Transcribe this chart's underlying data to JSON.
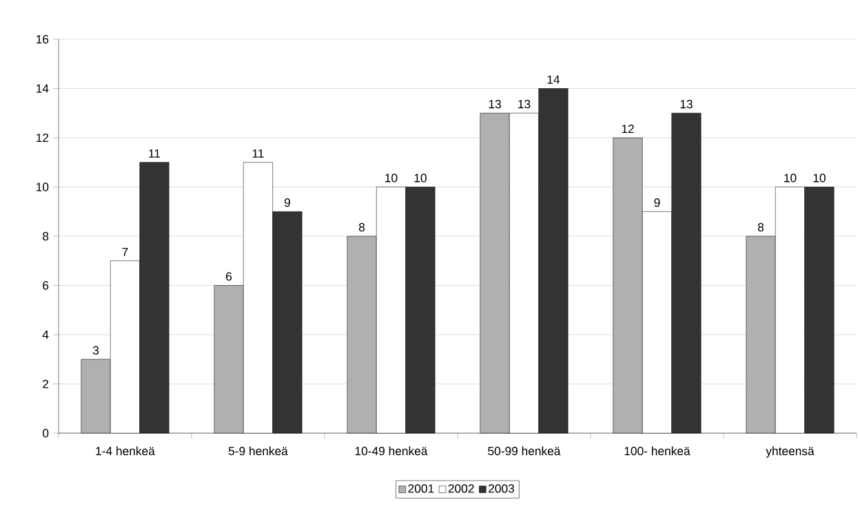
{
  "chart_data": {
    "type": "bar",
    "categories": [
      "1-4 henkeä",
      "5-9 henkeä",
      "10-49 henkeä",
      "50-99 henkeä",
      "100- henkeä",
      "yhteensä"
    ],
    "series": [
      {
        "name": "2001",
        "color": "#b0b0b0",
        "values": [
          3,
          6,
          8,
          13,
          12,
          8
        ]
      },
      {
        "name": "2002",
        "color": "#ffffff",
        "values": [
          7,
          11,
          10,
          13,
          9,
          10
        ]
      },
      {
        "name": "2003",
        "color": "#333333",
        "values": [
          11,
          9,
          10,
          14,
          13,
          10
        ]
      }
    ],
    "ylim": [
      0,
      16
    ],
    "yticks": [
      0,
      2,
      4,
      6,
      8,
      10,
      12,
      14,
      16
    ],
    "grid": "y",
    "legend": "bottom",
    "data_labels": true
  }
}
